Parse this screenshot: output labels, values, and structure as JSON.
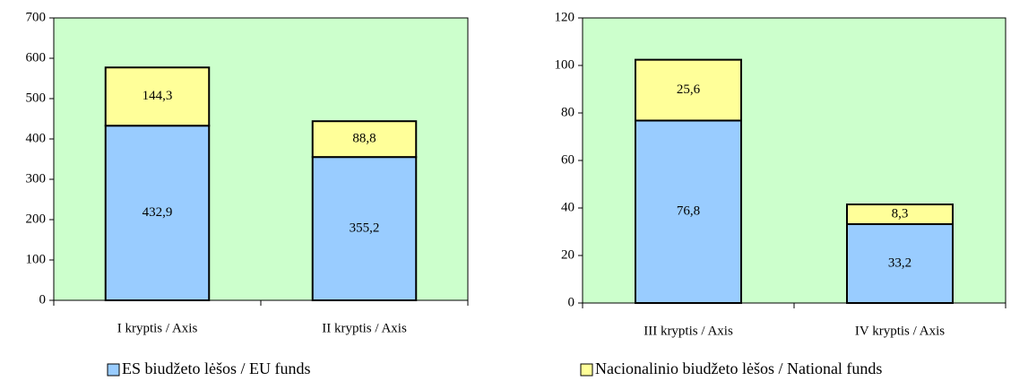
{
  "chart_data": [
    {
      "type": "bar",
      "stacked": true,
      "categories": [
        "I kryptis / Axis",
        "II kryptis / Axis"
      ],
      "series": [
        {
          "name": "ES biudžeto lėšos / EU funds",
          "color": "#99ccff",
          "values": [
            432.9,
            355.2
          ],
          "value_labels": [
            "432,9",
            "355,2"
          ]
        },
        {
          "color": "#ffff99",
          "values": [
            144.3,
            88.8
          ],
          "value_labels": [
            "144,3",
            "88,8"
          ]
        }
      ],
      "ylim": [
        0,
        700
      ],
      "yticks": [
        0,
        100,
        200,
        300,
        400,
        500,
        600,
        700
      ],
      "background": "#ccffcc"
    },
    {
      "type": "bar",
      "stacked": true,
      "categories": [
        "III kryptis / Axis",
        "IV kryptis / Axis"
      ],
      "series": [
        {
          "color": "#99ccff",
          "values": [
            76.8,
            33.2
          ],
          "value_labels": [
            "76,8",
            "33,2"
          ]
        },
        {
          "name": "Nacionalinio biudžeto lėšos / National funds",
          "color": "#ffff99",
          "values": [
            25.6,
            8.3
          ],
          "value_labels": [
            "25,6",
            "8,3"
          ]
        }
      ],
      "ylim": [
        0,
        120
      ],
      "yticks": [
        0,
        20,
        40,
        60,
        80,
        100,
        120
      ],
      "background": "#ccffcc"
    }
  ]
}
